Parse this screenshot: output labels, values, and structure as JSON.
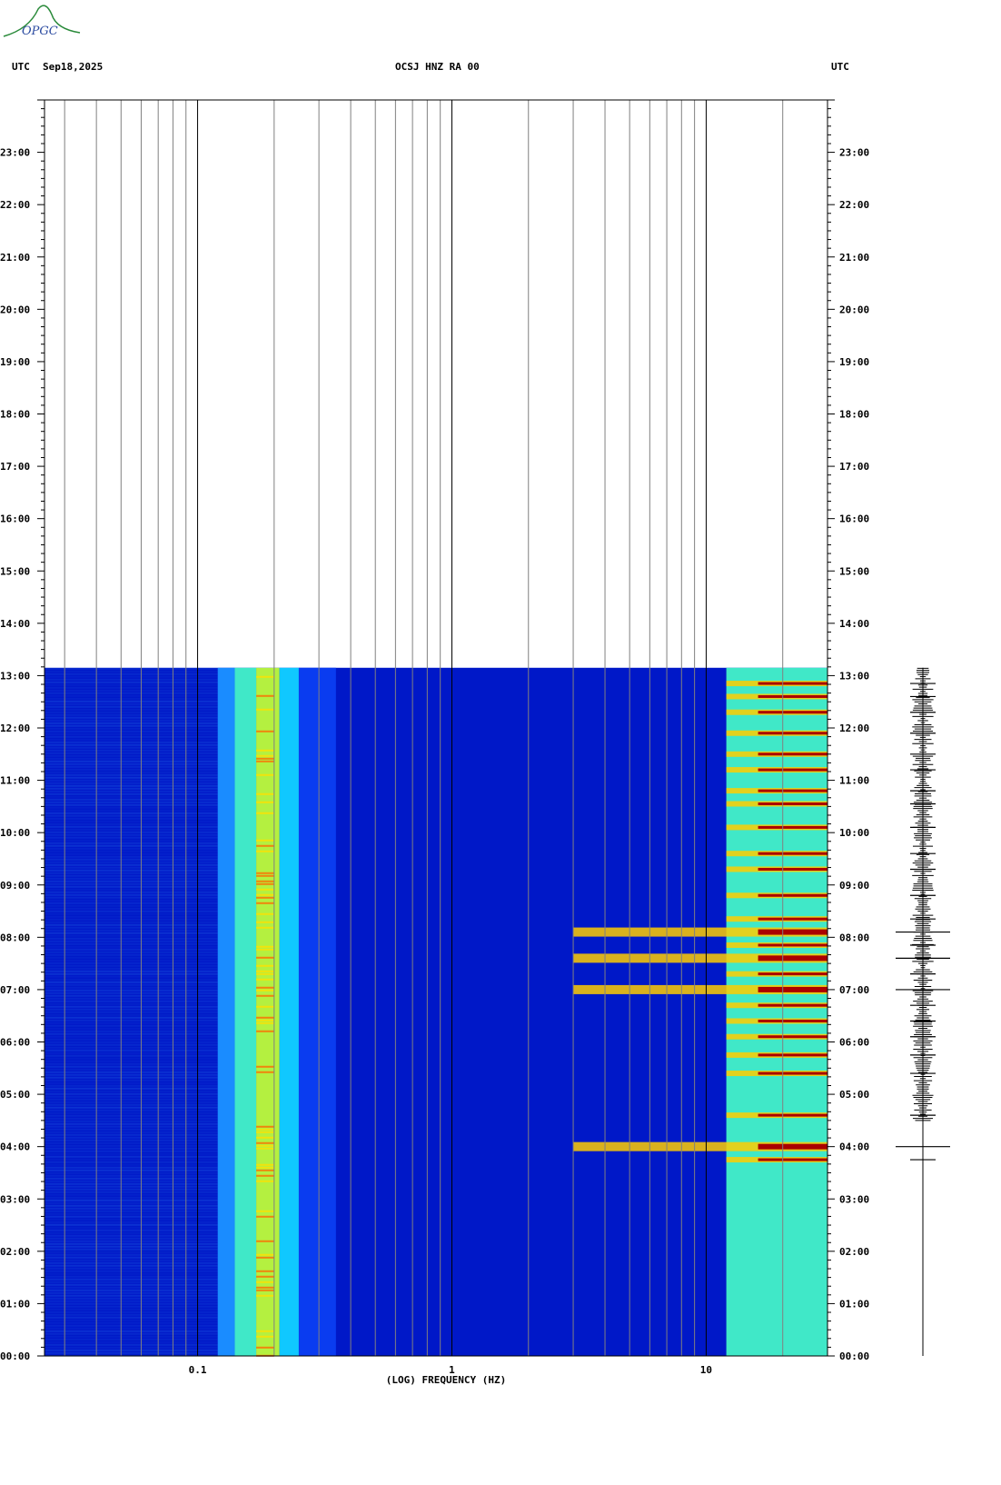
{
  "header": {
    "logo_text": "OPGC",
    "left_tz": "UTC",
    "date": "Sep18,2025",
    "station": "OCSJ HNZ RA 00",
    "right_tz": "UTC"
  },
  "chart_data": {
    "type": "heatmap",
    "title": "OCSJ HNZ RA 00",
    "xlabel": "(LOG) FREQUENCY (HZ)",
    "ylabel": "UTC",
    "x_scale": "log",
    "xlim": [
      0.025,
      30
    ],
    "x_ticks": [
      {
        "value": 0.1,
        "label": "0.1"
      },
      {
        "value": 1,
        "label": "1"
      },
      {
        "value": 10,
        "label": "10"
      }
    ],
    "ylim": [
      "00:00",
      "24:00"
    ],
    "y_ticks": [
      "00:00",
      "01:00",
      "02:00",
      "03:00",
      "04:00",
      "05:00",
      "06:00",
      "07:00",
      "08:00",
      "09:00",
      "10:00",
      "11:00",
      "12:00",
      "13:00",
      "14:00",
      "15:00",
      "16:00",
      "17:00",
      "18:00",
      "19:00",
      "20:00",
      "21:00",
      "22:00",
      "23:00"
    ],
    "data_end_hour": 13.15,
    "colors": {
      "low": "#0018c8",
      "mid": "#00c8ff",
      "high": "#ffff00",
      "peak": "#aa0000"
    },
    "spectral_bands": [
      {
        "f_start": 0.12,
        "f_end": 0.14,
        "level": 0.35
      },
      {
        "f_start": 0.14,
        "f_end": 0.17,
        "level": 0.6
      },
      {
        "f_start": 0.17,
        "f_end": 0.21,
        "level": 0.75
      },
      {
        "f_start": 0.21,
        "f_end": 0.25,
        "level": 0.4
      },
      {
        "f_start": 0.25,
        "f_end": 0.35,
        "level": 0.15
      },
      {
        "f_start": 12,
        "f_end": 30,
        "level": 0.55
      }
    ],
    "events_hours": [
      3.75,
      4.0,
      4.6,
      5.4,
      5.75,
      6.1,
      6.4,
      6.7,
      7.0,
      7.3,
      7.6,
      7.85,
      8.1,
      8.35,
      8.8,
      9.3,
      9.6,
      10.1,
      10.55,
      10.8,
      11.2,
      11.5,
      11.9,
      12.3,
      12.6,
      12.85
    ],
    "strong_events_hours": [
      4.0,
      7.1,
      7.65,
      8.1
    ]
  }
}
